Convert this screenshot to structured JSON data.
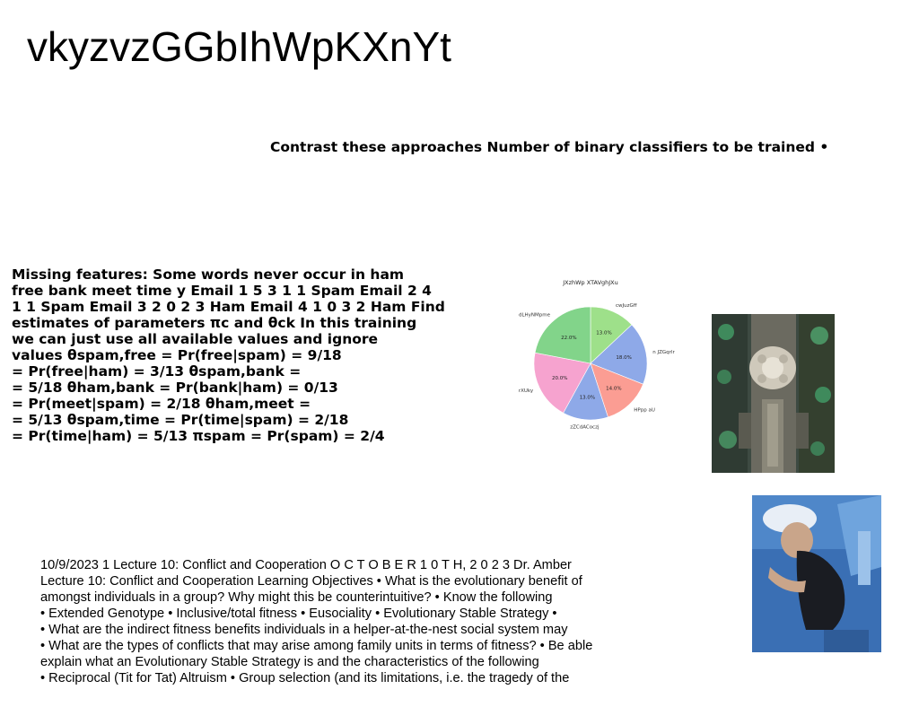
{
  "title": "vkyzvzGGbIhWpKXnYt",
  "subheading": "Contrast these approaches Number of binary classifiers to be trained •",
  "missing_features": {
    "lines": [
      "Missing features: Some words never occur in ham",
      "free bank meet time y Email 1 5 3 1 1 Spam Email 2 4",
      "1 1 Spam Email 3 2 0 2 3 Ham Email 4 1 0 3 2 Ham Find",
      "estimates of parameters πc and θck In this training",
      "we can just use all available values and ignore",
      "values θspam,free = Pr(free|spam) = 9/18",
      "= Pr(free|ham) = 3/13 θspam,bank =",
      "= 5/18 θham,bank = Pr(bank|ham) = 0/13",
      "= Pr(meet|spam) = 2/18 θham,meet =",
      "= 5/13 θspam,time = Pr(time|spam) = 2/18",
      "= Pr(time|ham) = 5/13 πspam = Pr(spam) = 2/4"
    ]
  },
  "lecture": {
    "lines": [
      "10/9/2023 1 Lecture 10: Conflict and Cooperation O C T O B E R 1 0 T H, 2 0 2 3 Dr. Amber",
      "Lecture 10: Conflict and Cooperation Learning Objectives • What is the evolutionary benefit of",
      "amongst individuals in a group? Why might this be counterintuitive? • Know the following",
      "• Extended Genotype • Inclusive/total fitness • Eusociality • Evolutionary Stable Strategy •",
      "• What are the indirect fitness benefits individuals in a helper-at-the-nest social system may",
      "• What are the types of conflicts that may arise among family units in terms of fitness? • Be able",
      "explain what an Evolutionary Stable Strategy is and the characteristics of the following",
      "• Reciprocal (Tit for Tat) Altruism • Group selection (and its limitations, i.e. the tragedy of the"
    ]
  },
  "chart_data": {
    "type": "pie",
    "title": "JXzhWp XTAVghJXu",
    "start_angle_deg": 90,
    "direction": "clockwise",
    "slices": [
      {
        "label": "cwJuzGff",
        "value": 13.0,
        "pct_label": "13.0%",
        "color": "#9ee08a"
      },
      {
        "label": "n JZGqrlr",
        "value": 18.0,
        "pct_label": "18.0%",
        "color": "#8ea9e8"
      },
      {
        "label": "HPpp aU",
        "value": 14.0,
        "pct_label": "14.0%",
        "color": "#fb9d93"
      },
      {
        "label": "zZCdACoczj",
        "value": 13.0,
        "pct_label": "13.0%",
        "color": "#8ea9e8"
      },
      {
        "label": "rXUky",
        "value": 20.0,
        "pct_label": "20.0%",
        "color": "#f6a3cf"
      },
      {
        "label": "dLHyNMpme",
        "value": 22.0,
        "pct_label": "22.0%",
        "color": "#82d48a"
      }
    ]
  },
  "images": {
    "photo1": "aerial-city-photo",
    "photo2": "person-lying-blue-tones-photo"
  }
}
